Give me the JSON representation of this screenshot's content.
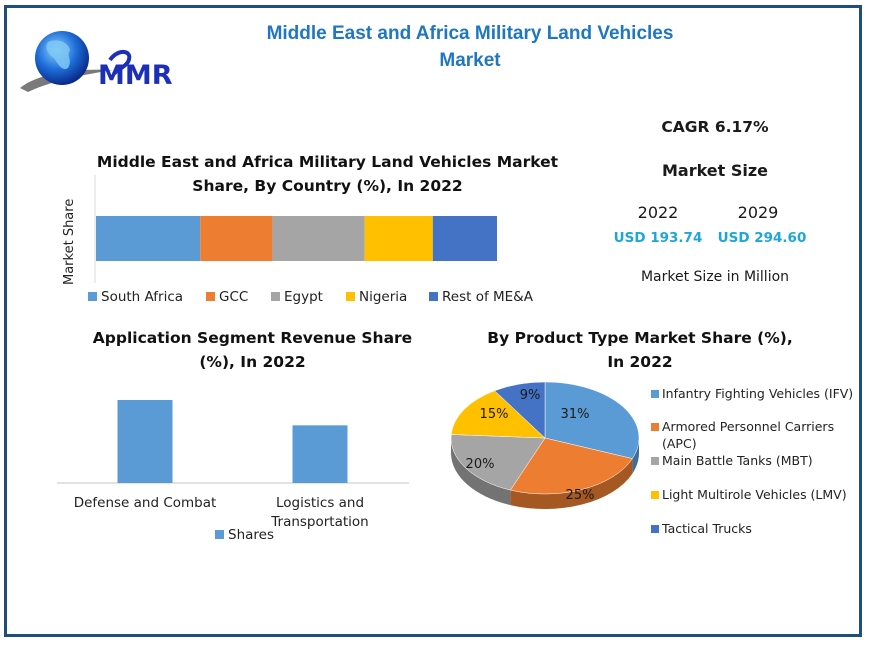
{
  "brand": {
    "logo_text": "MMR",
    "logo_icon": "globe-icon"
  },
  "header": {
    "title_line1": "Middle East and Africa Military Land Vehicles",
    "title_line2": "Market"
  },
  "stats": {
    "cagr_label": "CAGR 6.17%",
    "market_size_heading": "Market Size",
    "years": [
      "2022",
      "2029"
    ],
    "values": [
      "USD 193.74",
      "USD 294.60"
    ],
    "unit_note": "Market Size in Million",
    "value_color": "#1ea6dc"
  },
  "chart_data": [
    {
      "type": "bar",
      "orientation": "horizontal-stacked",
      "title_line1": "Middle East and Africa Military Land Vehicles Market",
      "title_line2": "Share, By Country (%), In 2022",
      "ylabel": "Market Share",
      "xlabel": "",
      "categories": [
        "2022"
      ],
      "series": [
        {
          "name": "South Africa",
          "values": [
            26
          ],
          "color": "#5b9bd5"
        },
        {
          "name": "GCC",
          "values": [
            18
          ],
          "color": "#ed7d31"
        },
        {
          "name": "Egypt",
          "values": [
            23
          ],
          "color": "#a5a5a5"
        },
        {
          "name": "Nigeria",
          "values": [
            17
          ],
          "color": "#ffc000"
        },
        {
          "name": "Rest of ME&A",
          "values": [
            16
          ],
          "color": "#4472c4"
        }
      ],
      "xlim": [
        0,
        100
      ],
      "grid": false,
      "legend": "bottom"
    },
    {
      "type": "bar",
      "title_line1": "Application Segment Revenue Share",
      "title_line2": "(%), In 2022",
      "categories": [
        "Defense and Combat",
        "Logistics and Transportation"
      ],
      "category_lines": [
        [
          "Defense and Combat"
        ],
        [
          "Logistics and",
          "Transportation"
        ]
      ],
      "series": [
        {
          "name": "Shares",
          "values": [
            59,
            41
          ],
          "color": "#5b9bd5"
        }
      ],
      "ylim": [
        0,
        70
      ],
      "grid": false,
      "legend": "bottom"
    },
    {
      "type": "pie",
      "title_line1": "By Product Type Market Share (%),",
      "title_line2": "In 2022",
      "slices": [
        {
          "label": "Infantry Fighting Vehicles (IFV)",
          "value": 31,
          "display": "31%",
          "color": "#5b9bd5"
        },
        {
          "label": "Armored Personnel Carriers (APC)",
          "value": 25,
          "display": "25%",
          "color": "#ed7d31"
        },
        {
          "label": "Main Battle Tanks (MBT)",
          "value": 20,
          "display": "20%",
          "color": "#a5a5a5"
        },
        {
          "label": "Light Multirole Vehicles (LMV)",
          "value": 15,
          "display": "15%",
          "color": "#ffc000"
        },
        {
          "label": "Tactical Trucks",
          "value": 9,
          "display": "9%",
          "color": "#4472c4"
        }
      ],
      "legend_lines": [
        [
          "Infantry Fighting Vehicles (IFV)"
        ],
        [
          "Armored Personnel Carriers",
          "(APC)"
        ],
        [
          "Main Battle Tanks (MBT)"
        ],
        [
          "Light Multirole Vehicles (LMV)"
        ],
        [
          "Tactical Trucks"
        ]
      ],
      "legend": "right",
      "style": "3d"
    }
  ]
}
